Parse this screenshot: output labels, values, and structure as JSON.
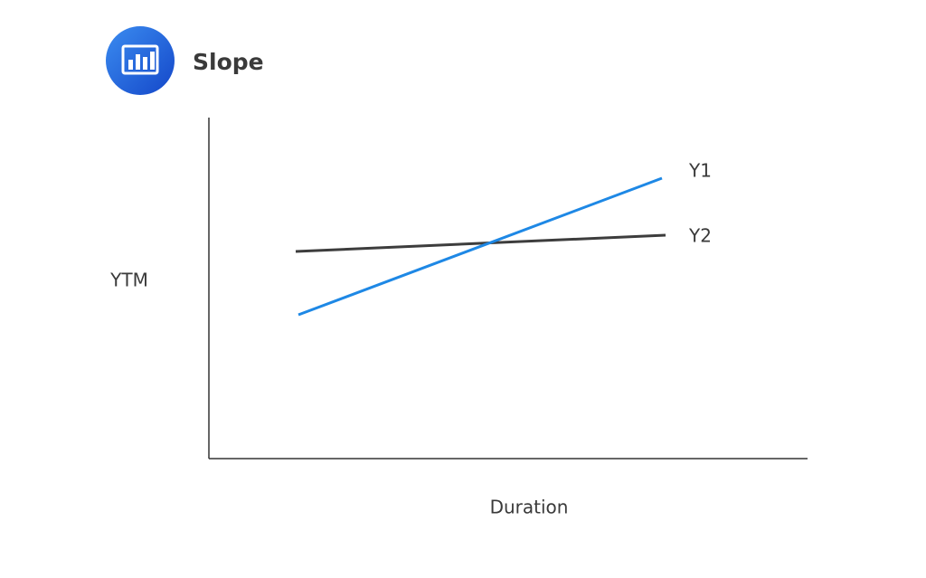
{
  "header": {
    "title": "Slope"
  },
  "axes": {
    "y_label": "YTM",
    "x_label": "Duration"
  },
  "lines": [
    {
      "label": "Y1",
      "color": "#1e88e5"
    },
    {
      "label": "Y2",
      "color": "#3d3d3d"
    }
  ]
}
